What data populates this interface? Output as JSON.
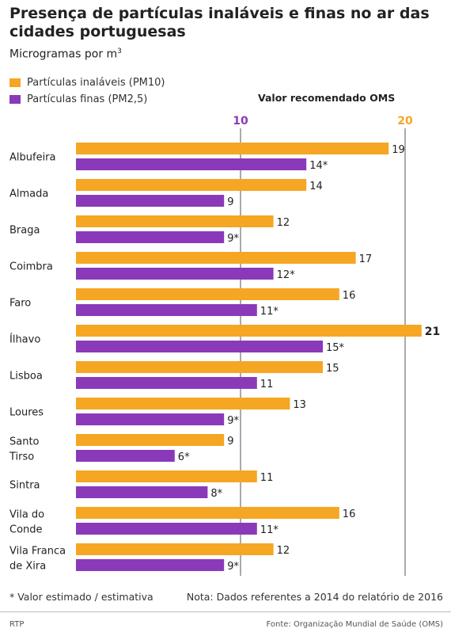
{
  "title": "Presença de partículas inaláveis e finas no ar das cidades portuguesas",
  "subtitle_main": "Microgramas por m",
  "subtitle_sup": "3",
  "legend": [
    {
      "label": "Partículas inaláveis (PM10)",
      "color": "#F5A623"
    },
    {
      "label": "Partículas finas (PM2,5)",
      "color": "#8A3AB9"
    }
  ],
  "colors": {
    "pm10": "#F5A623",
    "pm25": "#8A3AB9",
    "ref_pm25": "#8A3AB9",
    "ref_pm10": "#F5A623"
  },
  "chart_data": {
    "type": "bar",
    "orientation": "horizontal",
    "categories": [
      "Albufeira",
      "Almada",
      "Braga",
      "Coimbra",
      "Faro",
      "Ílhavo",
      "Lisboa",
      "Loures",
      "Santo Tirso",
      "Sintra",
      "Vila do Conde",
      "Vila Franca de Xira"
    ],
    "category_lines": [
      [
        "Albufeira"
      ],
      [
        "Almada"
      ],
      [
        "Braga"
      ],
      [
        "Coimbra"
      ],
      [
        "Faro"
      ],
      [
        "Ílhavo"
      ],
      [
        "Lisboa"
      ],
      [
        "Loures"
      ],
      [
        "Santo",
        "Tirso"
      ],
      [
        "Sintra"
      ],
      [
        "Vila do",
        "Conde"
      ],
      [
        "Vila Franca",
        "de Xira"
      ]
    ],
    "series": [
      {
        "name": "Partículas inaláveis (PM10)",
        "values": [
          19,
          14,
          12,
          17,
          16,
          21,
          15,
          13,
          9,
          11,
          16,
          12
        ],
        "labels": [
          "19",
          "14",
          "12",
          "17",
          "16",
          "21",
          "15",
          "13",
          "9",
          "11",
          "16",
          "12"
        ]
      },
      {
        "name": "Partículas finas (PM2,5)",
        "values": [
          14,
          9,
          9,
          12,
          11,
          15,
          11,
          9,
          6,
          8,
          11,
          9
        ],
        "labels": [
          "14*",
          "9",
          "9*",
          "12*",
          "11*",
          "15*",
          "11",
          "9*",
          "6*",
          "8*",
          "11*",
          "9*"
        ]
      }
    ],
    "bold_label": "21",
    "xlim": [
      0,
      21
    ],
    "reference_title": "Valor recomendado OMS",
    "reference_lines": [
      {
        "value": 10,
        "label": "10",
        "series": "pm25"
      },
      {
        "value": 20,
        "label": "20",
        "series": "pm10"
      }
    ]
  },
  "notes": {
    "estimate": "* Valor estimado / estimativa",
    "data_note": "Nota: Dados referentes a 2014 do relatório de 2016"
  },
  "footer": {
    "brand": "RTP",
    "source": "Fonte: Organização Mundial de Saúde (OMS)"
  }
}
